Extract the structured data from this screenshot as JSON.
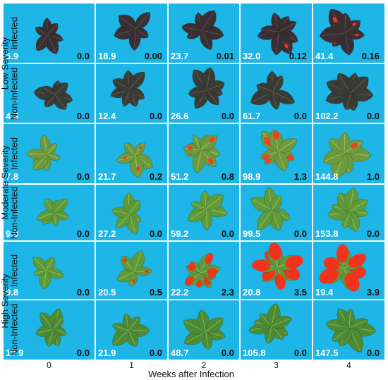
{
  "x_axis": {
    "label": "Weeks after Infection",
    "weeks": [
      "0",
      "1",
      "2",
      "3",
      "4"
    ]
  },
  "severity_groups": [
    "Low Severity",
    "Moderate Severity",
    "High Severity"
  ],
  "rows": [
    {
      "group": "Low Severity",
      "label": "Infected",
      "leaf": "#3a2f33",
      "vein": "#5e4e52",
      "red": "#ff3322",
      "values": [
        {
          "week": "0",
          "left": "6.9",
          "right": "0.0"
        },
        {
          "week": "1",
          "left": "18.9",
          "right": "0.00"
        },
        {
          "week": "2",
          "left": "23.7",
          "right": "0.01"
        },
        {
          "week": "3",
          "left": "32.0",
          "right": "0.12"
        },
        {
          "week": "4",
          "left": "41.4",
          "right": "0.16"
        }
      ]
    },
    {
      "group": "Low Severity",
      "label": "Non-Infected",
      "leaf": "#3a3b34",
      "vein": "#5c5d52",
      "red": "#ff3322",
      "values": [
        {
          "week": "0",
          "left": "4.3",
          "right": "0.0"
        },
        {
          "week": "1",
          "left": "12.4",
          "right": "0.0"
        },
        {
          "week": "2",
          "left": "26.6",
          "right": "0.0"
        },
        {
          "week": "3",
          "left": "61.7",
          "right": "0.0"
        },
        {
          "week": "4",
          "left": "102.2",
          "right": "0.0"
        }
      ]
    },
    {
      "group": "Moderate Severity",
      "label": "Infected",
      "leaf": "#6d9a3c",
      "vein": "#9cc35f",
      "red": "#ff3322",
      "values": [
        {
          "week": "0",
          "left": "7.8",
          "right": "0.0"
        },
        {
          "week": "1",
          "left": "21.7",
          "right": "0.2"
        },
        {
          "week": "2",
          "left": "51.2",
          "right": "0.8"
        },
        {
          "week": "3",
          "left": "98.9",
          "right": "1.3"
        },
        {
          "week": "4",
          "left": "144.8",
          "right": "1.0"
        }
      ]
    },
    {
      "group": "Moderate Severity",
      "label": "Non-Infected",
      "leaf": "#5f9a3a",
      "vein": "#8fc05c",
      "red": "#ff3322",
      "values": [
        {
          "week": "0",
          "left": "9.9",
          "right": "0.0"
        },
        {
          "week": "1",
          "left": "27.2",
          "right": "0.0"
        },
        {
          "week": "2",
          "left": "59.2",
          "right": "0.0"
        },
        {
          "week": "3",
          "left": "99.5",
          "right": "0.0"
        },
        {
          "week": "4",
          "left": "153.8",
          "right": "0.0"
        }
      ]
    },
    {
      "group": "High Severity",
      "label": "Infected",
      "leaf": "#5f9a3a",
      "vein": "#8fc05c",
      "red": "#ff2a1a",
      "values": [
        {
          "week": "0",
          "left": "9.8",
          "right": "0.0"
        },
        {
          "week": "1",
          "left": "20.5",
          "right": "0.5"
        },
        {
          "week": "2",
          "left": "22.2",
          "right": "2.3"
        },
        {
          "week": "3",
          "left": "20.8",
          "right": "3.5"
        },
        {
          "week": "4",
          "left": "19.4",
          "right": "3.9"
        }
      ]
    },
    {
      "group": "High Severity",
      "label": "Non-Infected",
      "leaf": "#4e8a34",
      "vein": "#7fb455",
      "red": "#ff3322",
      "values": [
        {
          "week": "0",
          "left": "12.9",
          "right": "0.0"
        },
        {
          "week": "1",
          "left": "21.9",
          "right": "0.0"
        },
        {
          "week": "2",
          "left": "48.7",
          "right": "0.0"
        },
        {
          "week": "3",
          "left": "105.8",
          "right": "0.0"
        },
        {
          "week": "4",
          "left": "147.5",
          "right": "0.0"
        }
      ]
    }
  ],
  "colors": {
    "background_blue": "#1eb6e7",
    "left_value_text": "#ffffff",
    "right_value_text": "#111111",
    "lesion_red": "#ff3322"
  }
}
